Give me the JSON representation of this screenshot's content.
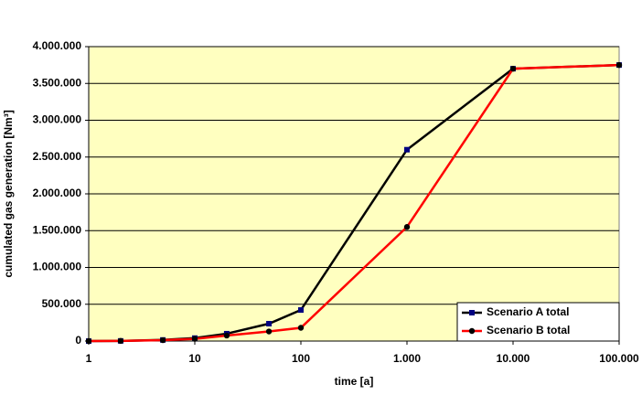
{
  "chart_data": {
    "type": "line",
    "x_label": "time [a]",
    "y_label": "cumulated gas generation [Nm³]",
    "x": [
      1,
      2,
      5,
      10,
      20,
      50,
      100,
      1000,
      10000,
      100000
    ],
    "x_scale": "log",
    "xlim": [
      1,
      100000
    ],
    "xticks": [
      1,
      10,
      100,
      {
        "value": 1000,
        "label": "1.000"
      },
      {
        "value": 10000,
        "label": "10.000"
      },
      {
        "value": 100000,
        "label": "100.000"
      }
    ],
    "ylim": [
      0,
      4000000
    ],
    "yticks": [
      0,
      {
        "value": 500000,
        "label": "500.000"
      },
      {
        "value": 1000000,
        "label": "1.000.000"
      },
      {
        "value": 1500000,
        "label": "1.500.000"
      },
      {
        "value": 2000000,
        "label": "2.000.000"
      },
      {
        "value": 2500000,
        "label": "2.500.000"
      },
      {
        "value": 3000000,
        "label": "3.000.000"
      },
      {
        "value": 3500000,
        "label": "3.500.000"
      },
      {
        "value": 4000000,
        "label": "4.000.000"
      }
    ],
    "grid": true,
    "plot_background": "#ffffc0",
    "legend": "lower right",
    "series": [
      {
        "name": "Scenario A total",
        "color": "#000000",
        "marker": "square",
        "marker_color": "#000080",
        "values": [
          0,
          2000,
          15000,
          40000,
          100000,
          236000,
          422000,
          2600000,
          3700000,
          3750000
        ]
      },
      {
        "name": "Scenario B total",
        "color": "#ff0000",
        "marker": "circle",
        "marker_color": "#000000",
        "values": [
          0,
          2000,
          12000,
          30000,
          75000,
          130000,
          180000,
          1550000,
          3700000,
          3750000
        ]
      }
    ]
  }
}
